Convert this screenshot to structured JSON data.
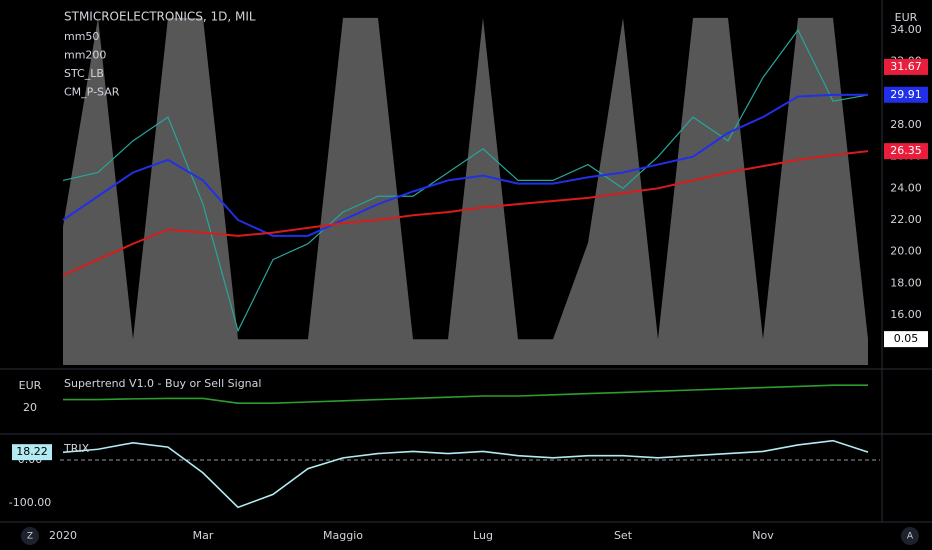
{
  "chart_data": [
    {
      "type": "line",
      "title": "STMICROELECTRONICS, 1D, MIL",
      "currency": "EUR",
      "categories": [
        "2020",
        null,
        null,
        null,
        "Mar",
        null,
        null,
        null,
        "Maggio",
        null,
        null,
        null,
        "Lug",
        null,
        null,
        null,
        "Set",
        null,
        null,
        null,
        "Nov",
        null,
        null,
        null
      ],
      "values": [
        24.5,
        25,
        27,
        28.5,
        23,
        15,
        19.5,
        20.5,
        22.5,
        23.5,
        23.5,
        25,
        26.5,
        24.5,
        24.5,
        25.5,
        24,
        26,
        28.5,
        27,
        31,
        34,
        29.5,
        29.9
      ],
      "color": "#26a69a",
      "series": [
        {
          "name": "mm50",
          "color": "#2130e8",
          "values": [
            22,
            23.5,
            25,
            25.8,
            24.5,
            22,
            21,
            21,
            22,
            23,
            23.8,
            24.5,
            24.8,
            24.3,
            24.3,
            24.7,
            25,
            25.5,
            26,
            27.5,
            28.5,
            29.8,
            29.9,
            29.91
          ]
        },
        {
          "name": "mm200",
          "color": "#d81c1c",
          "values": [
            18.5,
            19.5,
            20.5,
            21.4,
            21.2,
            21,
            21.2,
            21.5,
            21.8,
            22,
            22.3,
            22.5,
            22.8,
            23,
            23.2,
            23.4,
            23.7,
            24,
            24.5,
            25,
            25.4,
            25.8,
            26.1,
            26.35
          ]
        },
        {
          "name": "STC_LB",
          "color": "#9e9e9e",
          "axis": "y2",
          "values": [
            35,
            100,
            0,
            100,
            100,
            0,
            0,
            0,
            100,
            100,
            0,
            0,
            100,
            0,
            0,
            30,
            100,
            0,
            100,
            100,
            0,
            100,
            100,
            0
          ]
        }
      ],
      "extra_legend": [
        "CM_P-SAR"
      ],
      "ylim": [
        12.84,
        35.58
      ],
      "yticks": [
        {
          "value": 16,
          "label": "16.00"
        },
        {
          "value": 18,
          "label": "18.00"
        },
        {
          "value": 20,
          "label": "20.00"
        },
        {
          "value": 22,
          "label": "22.00"
        },
        {
          "value": 24,
          "label": "24.00"
        },
        {
          "value": 26,
          "label": "26.00"
        },
        {
          "value": 28,
          "label": "28.00"
        },
        {
          "value": 30,
          "label": "30.00"
        },
        {
          "value": 32,
          "label": "32.00"
        },
        {
          "value": 34,
          "label": "34.00"
        }
      ],
      "y2lim": [
        -8,
        104
      ],
      "price_labels": [
        {
          "value": 31.67,
          "color": "#e91e3c"
        },
        {
          "value": 29.91,
          "color": "#2130e8"
        },
        {
          "value": 26.35,
          "color": "#e91e3c"
        },
        {
          "value": 0.05,
          "color": "#ffffff",
          "axis": "y2"
        }
      ]
    },
    {
      "type": "line",
      "title": "Supertrend V1.0 - Buy or Sell Signal",
      "currency": "EUR",
      "color": "#2e9d2e",
      "values": [
        23.5,
        23.5,
        23.8,
        24,
        24,
        22,
        22,
        22.5,
        23,
        23.5,
        24,
        24.5,
        25,
        25,
        25.5,
        26,
        26.5,
        27,
        27.5,
        28,
        28.5,
        29,
        29.5,
        29.5
      ],
      "ylim": [
        10,
        35
      ],
      "yticks": [
        20
      ]
    },
    {
      "type": "line",
      "title": "TRIX",
      "color": "#b2ebf2",
      "values": [
        18,
        25,
        40,
        30,
        -30,
        -110,
        -80,
        -20,
        5,
        15,
        20,
        15,
        20,
        10,
        5,
        10,
        10,
        5,
        10,
        15,
        20,
        35,
        45,
        18.22
      ],
      "ylim": [
        -139.5,
        53.5
      ],
      "yticks": [
        {
          "value": 0,
          "label": "0.00"
        },
        {
          "value": -100,
          "label": "-100.00"
        }
      ]
    }
  ]
}
